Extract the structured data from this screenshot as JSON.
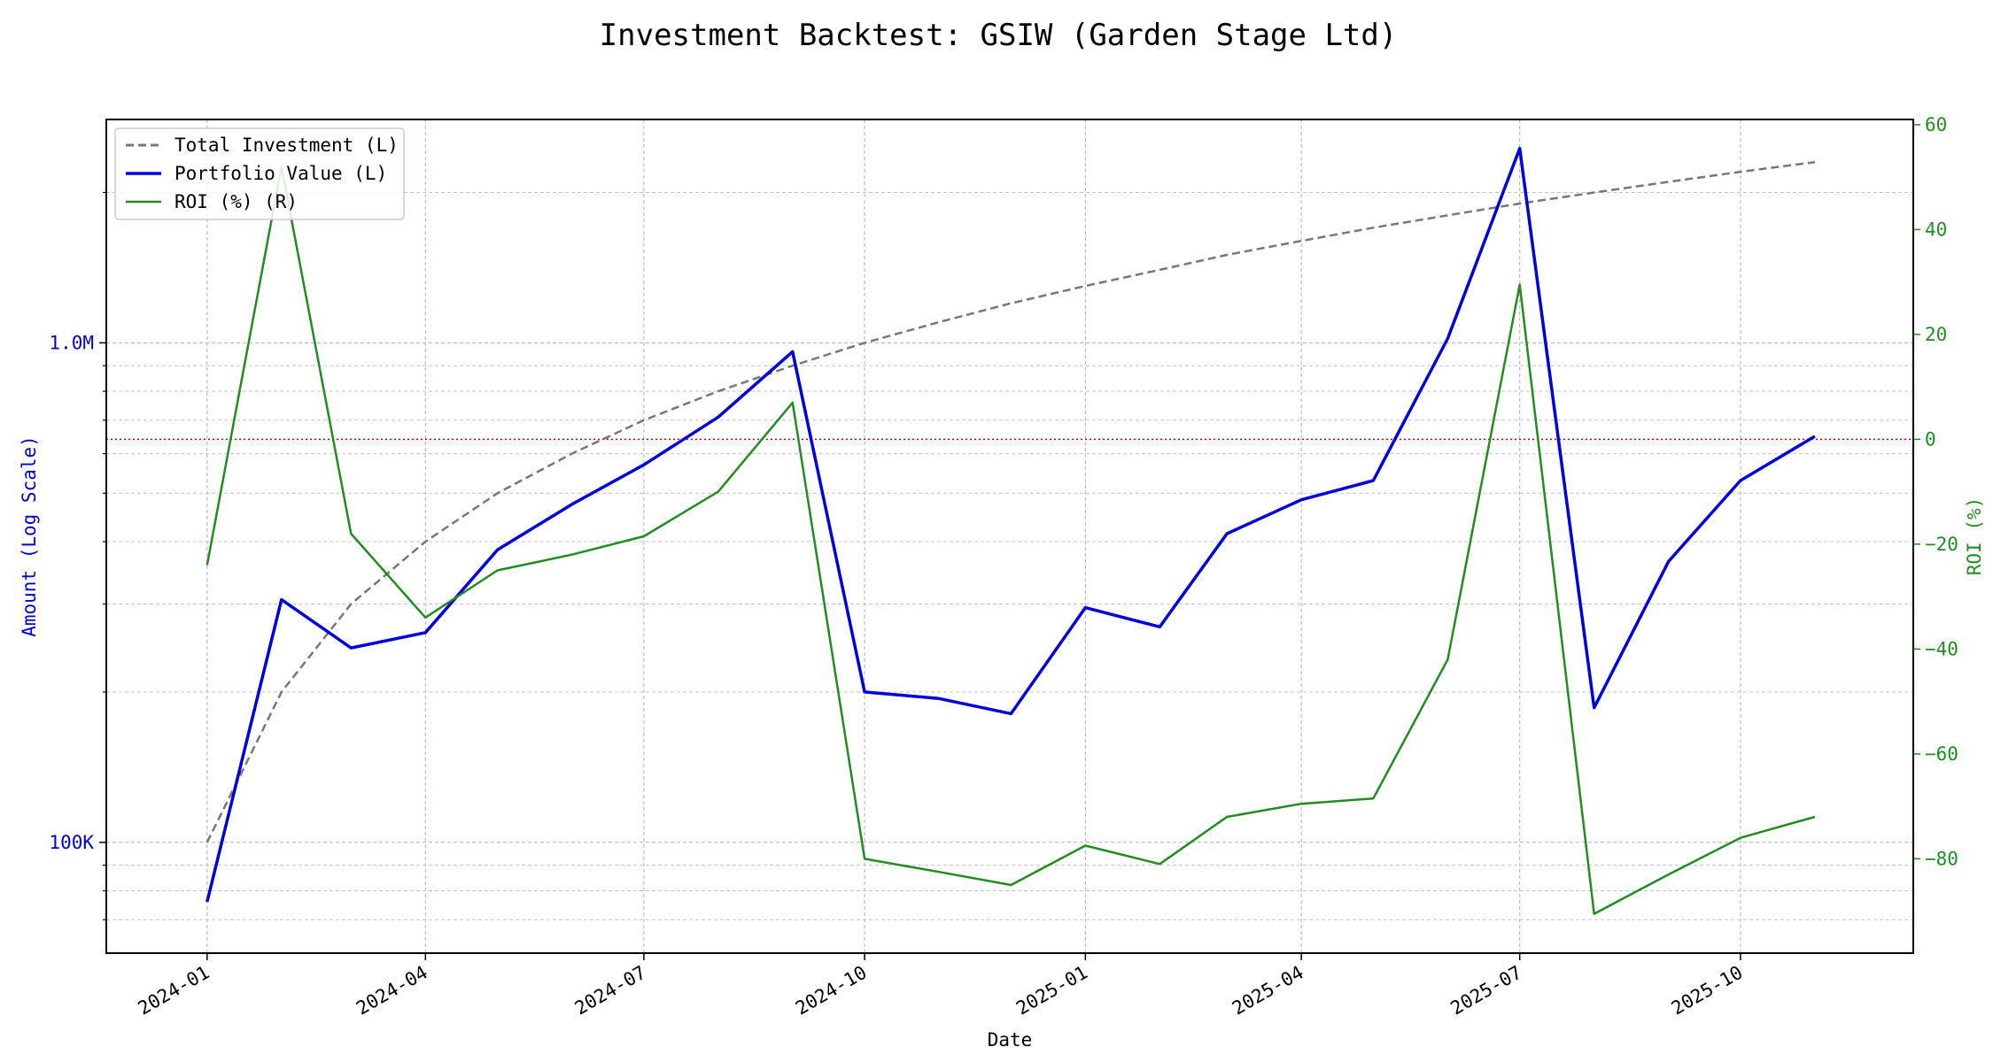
{
  "chart_data": {
    "type": "line",
    "title": "Investment Backtest: GSIW (Garden Stage Ltd)",
    "xlabel": "Date",
    "ylabel_left": "Amount (Log Scale)",
    "ylabel_right": "ROI (%)",
    "x_ticks": [
      "2024-01",
      "2024-04",
      "2024-07",
      "2024-10",
      "2025-01",
      "2025-04",
      "2025-07",
      "2025-10"
    ],
    "x_range": [
      "2023-11-20",
      "2025-12-12"
    ],
    "left_axis": {
      "scale": "log",
      "range": [
        60000,
        2800000
      ],
      "tick_values": [
        100000,
        1000000
      ],
      "tick_labels": [
        "100K",
        "1.0M"
      ],
      "minor_ticks": [
        70000,
        80000,
        90000,
        200000,
        300000,
        400000,
        500000,
        600000,
        700000,
        800000,
        900000,
        2000000
      ],
      "color": "#0000cc"
    },
    "right_axis": {
      "scale": "linear",
      "range": [
        -98,
        61
      ],
      "tick_values": [
        -80,
        -60,
        -40,
        -20,
        0,
        20,
        40,
        60
      ],
      "tick_labels": [
        "−80",
        "−60",
        "−40",
        "−20",
        "0",
        "20",
        "40",
        "60"
      ],
      "color": "#228b22"
    },
    "reference_line": {
      "axis": "right",
      "value": 0,
      "color": "#cc0000",
      "style": "dotted"
    },
    "grid": true,
    "legend_position": "upper left",
    "x": [
      "2024-01-01",
      "2024-02-01",
      "2024-03-01",
      "2024-04-01",
      "2024-05-01",
      "2024-06-01",
      "2024-07-01",
      "2024-08-01",
      "2024-09-01",
      "2024-10-01",
      "2024-11-01",
      "2024-12-01",
      "2025-01-01",
      "2025-02-01",
      "2025-03-01",
      "2025-04-01",
      "2025-05-01",
      "2025-06-01",
      "2025-07-01",
      "2025-08-01",
      "2025-09-01",
      "2025-10-01",
      "2025-11-01"
    ],
    "series": [
      {
        "name": "Total Investment (L)",
        "axis": "left",
        "color": "#777777",
        "style": "dashed",
        "values": [
          100000,
          200000,
          300000,
          400000,
          500000,
          600000,
          700000,
          800000,
          900000,
          1000000,
          1100000,
          1200000,
          1300000,
          1400000,
          1500000,
          1600000,
          1700000,
          1800000,
          1900000,
          2000000,
          2100000,
          2200000,
          2300000
        ]
      },
      {
        "name": "Portfolio Value (L)",
        "axis": "left",
        "color": "#0000dd",
        "style": "solid",
        "values": [
          76000,
          306000,
          245000,
          263000,
          385000,
          475000,
          570000,
          710000,
          960000,
          200000,
          194000,
          181000,
          295000,
          270000,
          415000,
          485000,
          530000,
          1020000,
          2450000,
          186000,
          365000,
          530000,
          650000
        ]
      },
      {
        "name": "ROI (%) (R)",
        "axis": "right",
        "color": "#228b22",
        "style": "solid",
        "values": [
          -24,
          52,
          -18,
          -34,
          -25,
          -22,
          -18.5,
          -10,
          7,
          -80,
          -82.5,
          -85,
          -77.5,
          -81,
          -72,
          -69.5,
          -68.5,
          -42,
          29.5,
          -90.5,
          -83,
          -76,
          -72
        ]
      }
    ]
  }
}
